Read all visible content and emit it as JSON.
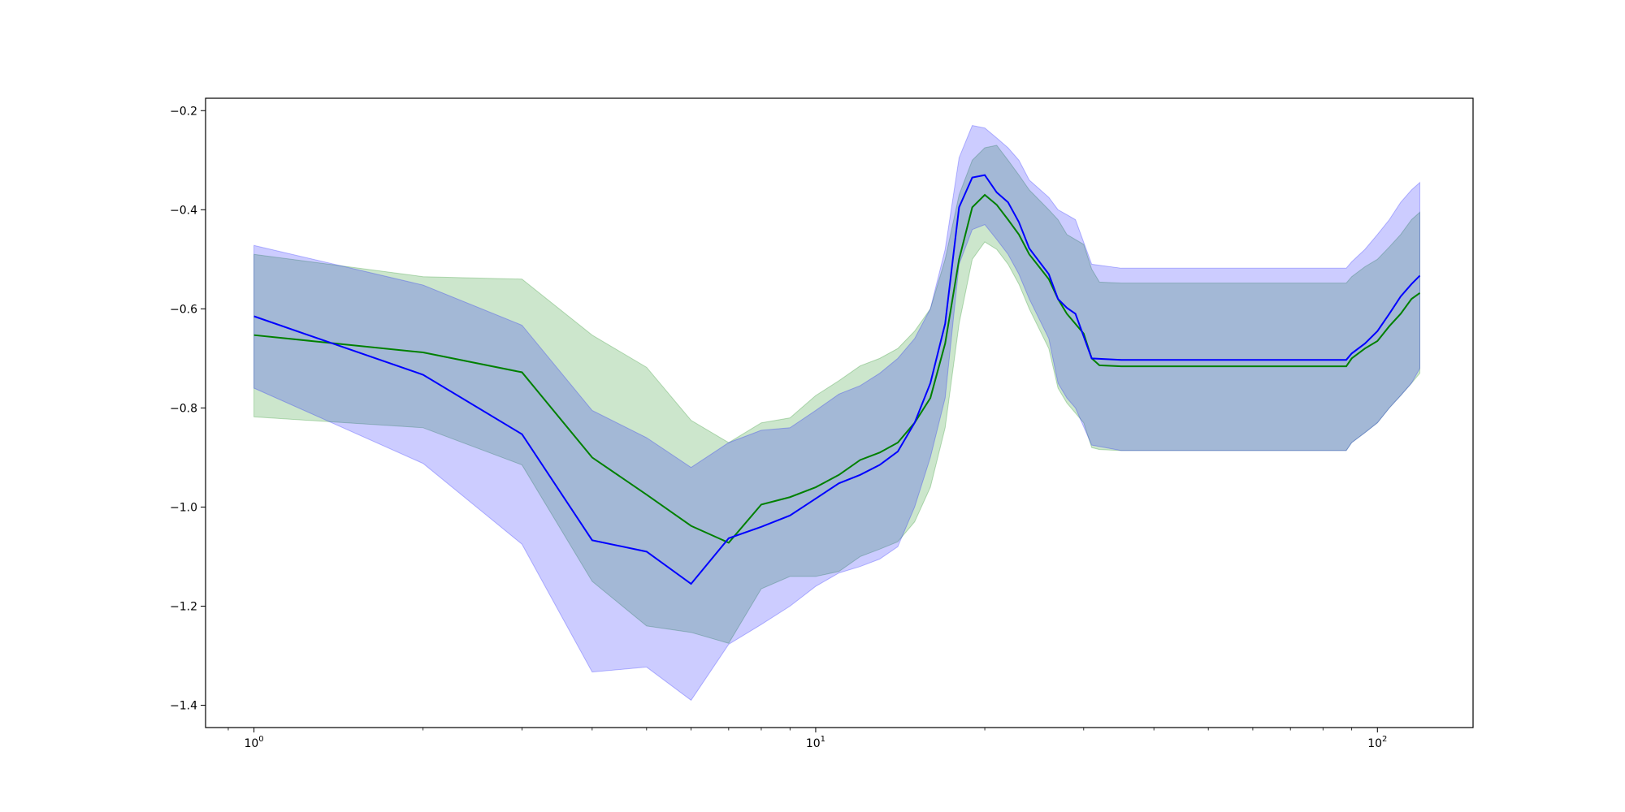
{
  "chart_data": {
    "type": "line",
    "title": "",
    "xlabel": "",
    "ylabel": "",
    "xscale": "log",
    "xlim": [
      0.82,
      148
    ],
    "ylim": [
      -1.445,
      -0.175
    ],
    "grid": false,
    "legend": "none",
    "x_tick_labels": [
      {
        "value": 1,
        "base": "10",
        "exp": "0"
      },
      {
        "value": 10,
        "base": "10",
        "exp": "1"
      },
      {
        "value": 100,
        "base": "10",
        "exp": "2"
      }
    ],
    "y_ticks": [
      -1.4,
      -1.2,
      -1.0,
      -0.8,
      -0.6,
      -0.4,
      -0.2
    ],
    "y_tick_labels": [
      "−1.4",
      "−1.2",
      "−1.0",
      "−0.8",
      "−0.6",
      "−0.4",
      "−0.2"
    ],
    "series": [
      {
        "color": "#008000",
        "band_color": "#008000",
        "band_opacity": 0.2,
        "points": [
          {
            "x": 1,
            "y": -0.653,
            "lo": -0.818,
            "hi": -0.49
          },
          {
            "x": 2,
            "y": -0.688,
            "lo": -0.84,
            "hi": -0.535
          },
          {
            "x": 3,
            "y": -0.728,
            "lo": -0.915,
            "hi": -0.54
          },
          {
            "x": 4,
            "y": -0.9,
            "lo": -1.15,
            "hi": -0.653
          },
          {
            "x": 5,
            "y": -0.975,
            "lo": -1.24,
            "hi": -0.718
          },
          {
            "x": 6,
            "y": -1.038,
            "lo": -1.253,
            "hi": -0.825
          },
          {
            "x": 7,
            "y": -1.072,
            "lo": -1.275,
            "hi": -0.87
          },
          {
            "x": 8,
            "y": -0.995,
            "lo": -1.165,
            "hi": -0.83
          },
          {
            "x": 9,
            "y": -0.98,
            "lo": -1.14,
            "hi": -0.82
          },
          {
            "x": 10,
            "y": -0.96,
            "lo": -1.14,
            "hi": -0.775
          },
          {
            "x": 11,
            "y": -0.935,
            "lo": -1.13,
            "hi": -0.745
          },
          {
            "x": 12,
            "y": -0.905,
            "lo": -1.1,
            "hi": -0.715
          },
          {
            "x": 13,
            "y": -0.89,
            "lo": -1.085,
            "hi": -0.7
          },
          {
            "x": 14,
            "y": -0.87,
            "lo": -1.07,
            "hi": -0.68
          },
          {
            "x": 15,
            "y": -0.83,
            "lo": -1.03,
            "hi": -0.645
          },
          {
            "x": 16,
            "y": -0.78,
            "lo": -0.96,
            "hi": -0.6
          },
          {
            "x": 17,
            "y": -0.67,
            "lo": -0.84,
            "hi": -0.5
          },
          {
            "x": 18,
            "y": -0.5,
            "lo": -0.63,
            "hi": -0.37
          },
          {
            "x": 19,
            "y": -0.395,
            "lo": -0.5,
            "hi": -0.3
          },
          {
            "x": 20,
            "y": -0.37,
            "lo": -0.465,
            "hi": -0.275
          },
          {
            "x": 21,
            "y": -0.39,
            "lo": -0.48,
            "hi": -0.27
          },
          {
            "x": 22,
            "y": -0.42,
            "lo": -0.51,
            "hi": -0.3
          },
          {
            "x": 23,
            "y": -0.45,
            "lo": -0.55,
            "hi": -0.33
          },
          {
            "x": 24,
            "y": -0.49,
            "lo": -0.6,
            "hi": -0.36
          },
          {
            "x": 26,
            "y": -0.54,
            "lo": -0.68,
            "hi": -0.4
          },
          {
            "x": 27,
            "y": -0.58,
            "lo": -0.76,
            "hi": -0.42
          },
          {
            "x": 28,
            "y": -0.61,
            "lo": -0.79,
            "hi": -0.45
          },
          {
            "x": 30,
            "y": -0.65,
            "lo": -0.83,
            "hi": -0.47
          },
          {
            "x": 31,
            "y": -0.7,
            "lo": -0.88,
            "hi": -0.52
          },
          {
            "x": 32,
            "y": -0.714,
            "lo": -0.884,
            "hi": -0.546
          },
          {
            "x": 35,
            "y": -0.716,
            "lo": -0.886,
            "hi": -0.548
          },
          {
            "x": 88,
            "y": -0.716,
            "lo": -0.886,
            "hi": -0.548
          },
          {
            "x": 90,
            "y": -0.7,
            "lo": -0.87,
            "hi": -0.535
          },
          {
            "x": 95,
            "y": -0.68,
            "lo": -0.85,
            "hi": -0.515
          },
          {
            "x": 100,
            "y": -0.665,
            "lo": -0.83,
            "hi": -0.5
          },
          {
            "x": 105,
            "y": -0.635,
            "lo": -0.8,
            "hi": -0.475
          },
          {
            "x": 110,
            "y": -0.61,
            "lo": -0.775,
            "hi": -0.45
          },
          {
            "x": 115,
            "y": -0.58,
            "lo": -0.75,
            "hi": -0.42
          },
          {
            "x": 119,
            "y": -0.568,
            "lo": -0.73,
            "hi": -0.405
          }
        ]
      },
      {
        "color": "#0000ff",
        "band_color": "#0000ff",
        "band_opacity": 0.2,
        "points": [
          {
            "x": 1,
            "y": -0.615,
            "lo": -0.76,
            "hi": -0.472
          },
          {
            "x": 2,
            "y": -0.733,
            "lo": -0.912,
            "hi": -0.552
          },
          {
            "x": 3,
            "y": -0.853,
            "lo": -1.075,
            "hi": -0.633
          },
          {
            "x": 4,
            "y": -1.067,
            "lo": -1.333,
            "hi": -0.805
          },
          {
            "x": 5,
            "y": -1.09,
            "lo": -1.323,
            "hi": -0.86
          },
          {
            "x": 6,
            "y": -1.155,
            "lo": -1.39,
            "hi": -0.92
          },
          {
            "x": 7,
            "y": -1.063,
            "lo": -1.277,
            "hi": -0.87
          },
          {
            "x": 8,
            "y": -1.04,
            "lo": -1.237,
            "hi": -0.845
          },
          {
            "x": 9,
            "y": -1.017,
            "lo": -1.2,
            "hi": -0.84
          },
          {
            "x": 10,
            "y": -0.983,
            "lo": -1.16,
            "hi": -0.805
          },
          {
            "x": 11,
            "y": -0.952,
            "lo": -1.133,
            "hi": -0.772
          },
          {
            "x": 12,
            "y": -0.935,
            "lo": -1.12,
            "hi": -0.755
          },
          {
            "x": 13,
            "y": -0.915,
            "lo": -1.105,
            "hi": -0.73
          },
          {
            "x": 14,
            "y": -0.888,
            "lo": -1.08,
            "hi": -0.7
          },
          {
            "x": 15,
            "y": -0.83,
            "lo": -1.0,
            "hi": -0.66
          },
          {
            "x": 16,
            "y": -0.75,
            "lo": -0.9,
            "hi": -0.6
          },
          {
            "x": 17,
            "y": -0.63,
            "lo": -0.78,
            "hi": -0.48
          },
          {
            "x": 18,
            "y": -0.395,
            "lo": -0.51,
            "hi": -0.295
          },
          {
            "x": 19,
            "y": -0.335,
            "lo": -0.44,
            "hi": -0.23
          },
          {
            "x": 20,
            "y": -0.33,
            "lo": -0.43,
            "hi": -0.235
          },
          {
            "x": 21,
            "y": -0.365,
            "lo": -0.46,
            "hi": -0.255
          },
          {
            "x": 22,
            "y": -0.385,
            "lo": -0.49,
            "hi": -0.275
          },
          {
            "x": 23,
            "y": -0.425,
            "lo": -0.53,
            "hi": -0.3
          },
          {
            "x": 24,
            "y": -0.478,
            "lo": -0.58,
            "hi": -0.34
          },
          {
            "x": 26,
            "y": -0.53,
            "lo": -0.66,
            "hi": -0.375
          },
          {
            "x": 27,
            "y": -0.58,
            "lo": -0.75,
            "hi": -0.4
          },
          {
            "x": 28,
            "y": -0.598,
            "lo": -0.78,
            "hi": -0.41
          },
          {
            "x": 29,
            "y": -0.61,
            "lo": -0.8,
            "hi": -0.42
          },
          {
            "x": 31,
            "y": -0.7,
            "lo": -0.875,
            "hi": -0.51
          },
          {
            "x": 35,
            "y": -0.703,
            "lo": -0.886,
            "hi": -0.518
          },
          {
            "x": 88,
            "y": -0.703,
            "lo": -0.886,
            "hi": -0.518
          },
          {
            "x": 90,
            "y": -0.69,
            "lo": -0.87,
            "hi": -0.505
          },
          {
            "x": 95,
            "y": -0.67,
            "lo": -0.85,
            "hi": -0.48
          },
          {
            "x": 100,
            "y": -0.645,
            "lo": -0.83,
            "hi": -0.45
          },
          {
            "x": 105,
            "y": -0.61,
            "lo": -0.8,
            "hi": -0.42
          },
          {
            "x": 110,
            "y": -0.575,
            "lo": -0.775,
            "hi": -0.385
          },
          {
            "x": 115,
            "y": -0.55,
            "lo": -0.75,
            "hi": -0.36
          },
          {
            "x": 119,
            "y": -0.533,
            "lo": -0.72,
            "hi": -0.345
          }
        ]
      }
    ]
  }
}
